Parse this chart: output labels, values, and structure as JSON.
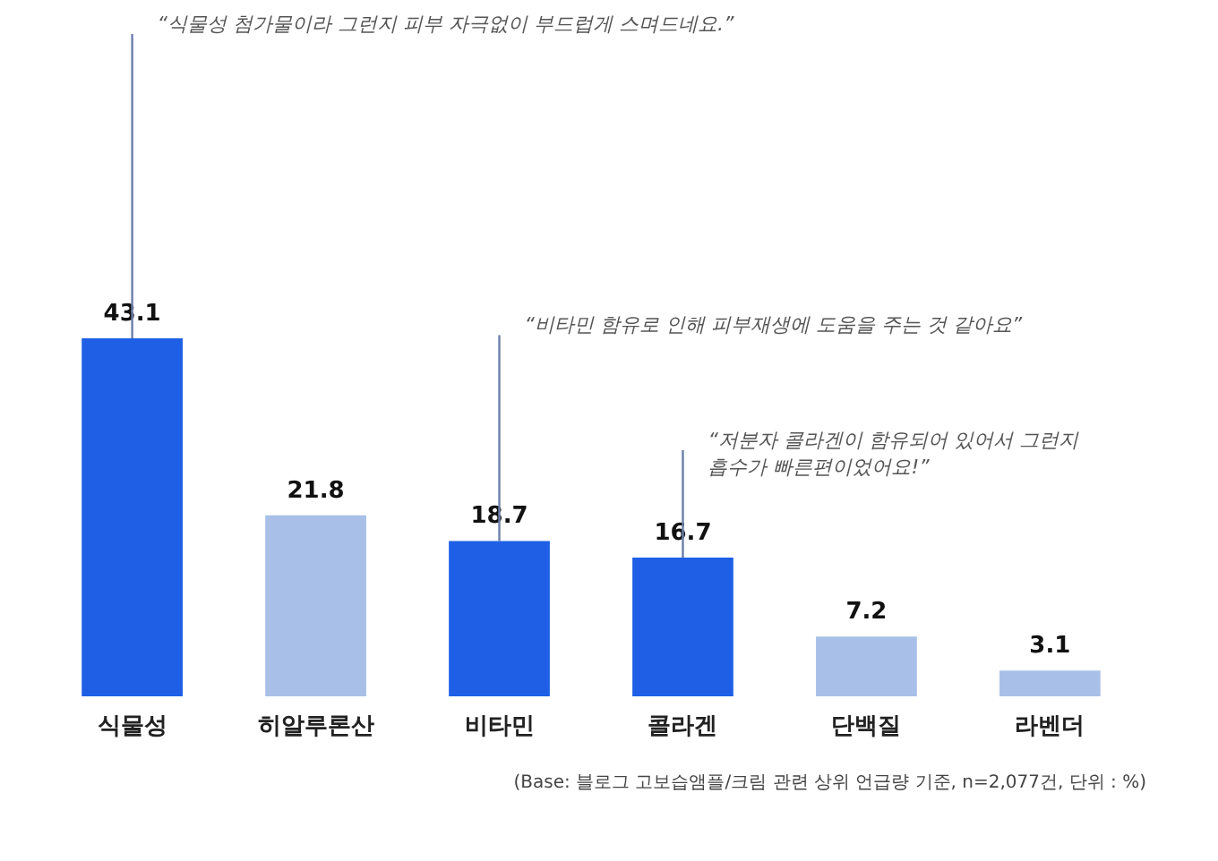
{
  "chart_data": {
    "type": "bar",
    "categories": [
      "식물성",
      "히알루론산",
      "비타민",
      "콜라겐",
      "단백질",
      "라벤더"
    ],
    "values": [
      43.1,
      21.8,
      18.7,
      16.7,
      7.2,
      3.1
    ],
    "colors": [
      "#1e5fe6",
      "#a8c0e8",
      "#1e5fe6",
      "#1e5fe6",
      "#a8c0e8",
      "#a8c0e8"
    ],
    "data_labels": true,
    "annotations": [
      {
        "text": "“식물성 첨가물이라 그런지 피부 자극없이 부드럽게 스며드네요.”",
        "x": "식물성",
        "y": 43.1
      },
      {
        "text": "“비타민 함유로 인해 피부재생에 도움을 주는 것 같아요”",
        "x": "비타민",
        "y": 18.7
      },
      {
        "text": "“저분자 콜라겐이 함유되어 있어서 그런지\n흡수가 빠른편이었어요!”",
        "x": "콜라겐",
        "y": 16.7
      },
      "(Base: 블로그 고보습앰플/크림 관련 상위 언급량 기준, n=2,077건, 단위 : %)"
    ]
  }
}
